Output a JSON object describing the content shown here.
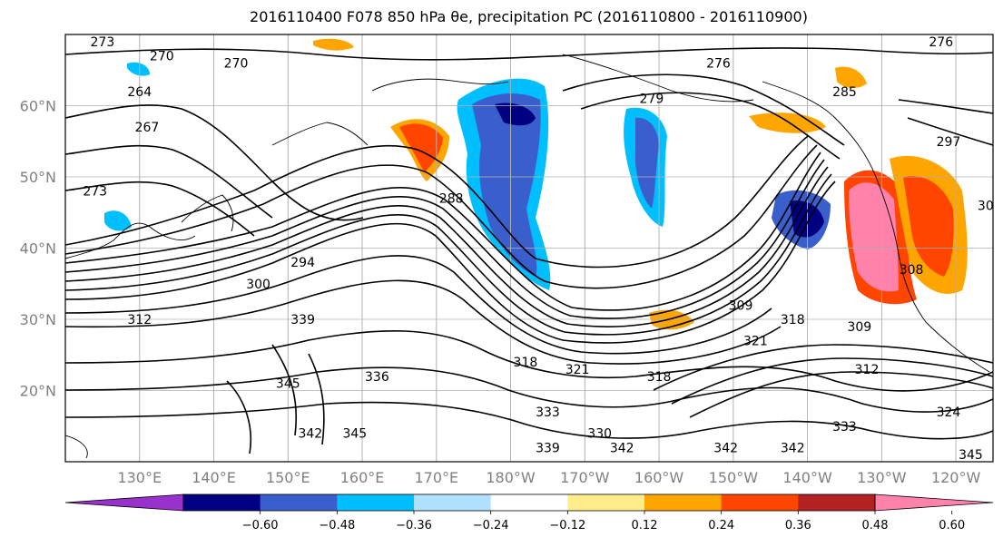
{
  "title": "2016110400 F078 850 hPa θe, precipitation PC (2016110800 - 2016110900)",
  "map": {
    "lon_range": [
      120,
      245
    ],
    "lat_range": [
      10,
      70
    ],
    "lat_ticks": [
      {
        "lat": 20,
        "label": "20°N"
      },
      {
        "lat": 30,
        "label": "30°N"
      },
      {
        "lat": 40,
        "label": "40°N"
      },
      {
        "lat": 50,
        "label": "50°N"
      },
      {
        "lat": 60,
        "label": "60°N"
      }
    ],
    "lon_ticks": [
      {
        "lon": 130,
        "label": "130°E"
      },
      {
        "lon": 140,
        "label": "140°E"
      },
      {
        "lon": 150,
        "label": "150°E"
      },
      {
        "lon": 160,
        "label": "160°E"
      },
      {
        "lon": 170,
        "label": "170°E"
      },
      {
        "lon": 180,
        "label": "180°W"
      },
      {
        "lon": 190,
        "label": "170°W"
      },
      {
        "lon": 200,
        "label": "160°W"
      },
      {
        "lon": 210,
        "label": "150°W"
      },
      {
        "lon": 220,
        "label": "140°W"
      },
      {
        "lon": 230,
        "label": "130°W"
      },
      {
        "lon": 240,
        "label": "120°W"
      }
    ]
  },
  "colorbar": {
    "colors": [
      "#9932cc",
      "#000080",
      "#3a5fcd",
      "#00bfff",
      "#b0e2ff",
      "#ffffff",
      "#ffec8b",
      "#ffa500",
      "#ff4500",
      "#b22222",
      "#ff82ab"
    ],
    "tick_labels": [
      "−0.60",
      "−0.48",
      "−0.36",
      "−0.24",
      "−0.12",
      "0.12",
      "0.24",
      "0.36",
      "0.48",
      "0.60"
    ]
  },
  "contour_labels": [
    {
      "text": "273",
      "lon": 125,
      "lat": 69
    },
    {
      "text": "270",
      "lon": 133,
      "lat": 67
    },
    {
      "text": "270",
      "lon": 143,
      "lat": 66
    },
    {
      "text": "264",
      "lon": 130,
      "lat": 62
    },
    {
      "text": "267",
      "lon": 131,
      "lat": 57
    },
    {
      "text": "273",
      "lon": 124,
      "lat": 48
    },
    {
      "text": "276",
      "lon": 208,
      "lat": 66
    },
    {
      "text": "279",
      "lon": 199,
      "lat": 61
    },
    {
      "text": "276",
      "lon": 238,
      "lat": 69
    },
    {
      "text": "285",
      "lon": 225,
      "lat": 62
    },
    {
      "text": "297",
      "lon": 239,
      "lat": 55
    },
    {
      "text": "288",
      "lon": 172,
      "lat": 47
    },
    {
      "text": "294",
      "lon": 152,
      "lat": 38
    },
    {
      "text": "300",
      "lon": 146,
      "lat": 35
    },
    {
      "text": "312",
      "lon": 130,
      "lat": 30
    },
    {
      "text": "339",
      "lon": 152,
      "lat": 30
    },
    {
      "text": "308",
      "lon": 234,
      "lat": 37
    },
    {
      "text": "309",
      "lon": 211,
      "lat": 32
    },
    {
      "text": "318",
      "lon": 218,
      "lat": 30
    },
    {
      "text": "309",
      "lon": 227,
      "lat": 29
    },
    {
      "text": "312",
      "lon": 228,
      "lat": 23
    },
    {
      "text": "321",
      "lon": 213,
      "lat": 27
    },
    {
      "text": "318",
      "lon": 182,
      "lat": 24
    },
    {
      "text": "321",
      "lon": 189,
      "lat": 23
    },
    {
      "text": "318",
      "lon": 200,
      "lat": 22
    },
    {
      "text": "336",
      "lon": 162,
      "lat": 22
    },
    {
      "text": "345",
      "lon": 150,
      "lat": 21
    },
    {
      "text": "333",
      "lon": 185,
      "lat": 17
    },
    {
      "text": "342",
      "lon": 153,
      "lat": 14
    },
    {
      "text": "345",
      "lon": 159,
      "lat": 14
    },
    {
      "text": "330",
      "lon": 192,
      "lat": 14
    },
    {
      "text": "339",
      "lon": 185,
      "lat": 12
    },
    {
      "text": "342",
      "lon": 195,
      "lat": 12
    },
    {
      "text": "342",
      "lon": 209,
      "lat": 12
    },
    {
      "text": "333",
      "lon": 225,
      "lat": 15
    },
    {
      "text": "342",
      "lon": 218,
      "lat": 12
    },
    {
      "text": "324",
      "lon": 239,
      "lat": 17
    },
    {
      "text": "345",
      "lon": 242,
      "lat": 11
    },
    {
      "text": "30",
      "lon": 244,
      "lat": 46
    }
  ]
}
